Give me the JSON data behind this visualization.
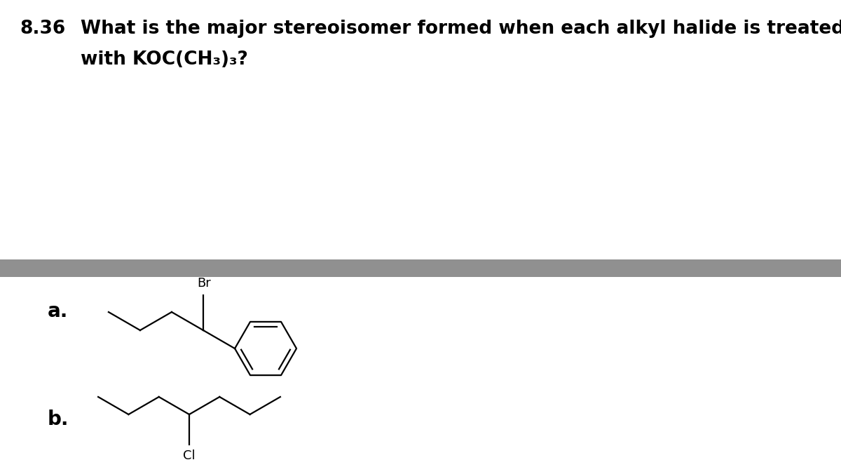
{
  "background_color": "#ffffff",
  "divider_color": "#909090",
  "title_number": "8.36",
  "title_question": "What is the major stereoisomer formed when each alkyl halide is treated",
  "title_question2": "with KOC(CH₃)₃?",
  "label_a": "a.",
  "label_b": "b.",
  "halogen_br": "Br",
  "halogen_cl": "Cl",
  "struct_color": "#000000",
  "lw": 1.6,
  "title_fontsize": 19,
  "label_fontsize": 20,
  "halogen_fontsize": 13
}
